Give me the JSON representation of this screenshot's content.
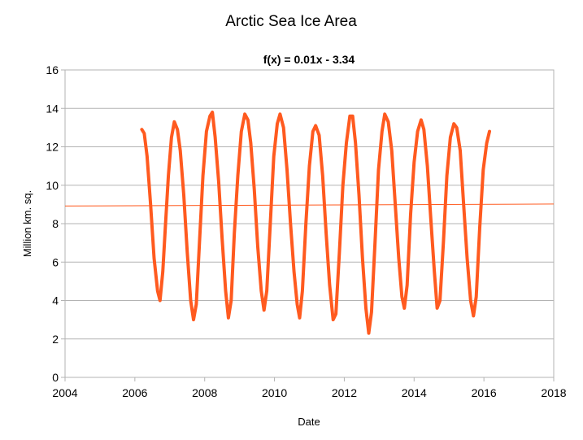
{
  "chart_data": {
    "type": "line",
    "title": "Arctic Sea Ice Area",
    "xlabel": "Date",
    "ylabel": "Million km. sq.",
    "xlim": [
      2004,
      2018
    ],
    "ylim": [
      0,
      16
    ],
    "x_ticks": [
      "2004",
      "2006",
      "2008",
      "2010",
      "2012",
      "2014",
      "2016",
      "2018"
    ],
    "y_ticks": [
      "0",
      "2",
      "4",
      "6",
      "8",
      "10",
      "12",
      "14",
      "16"
    ],
    "grid": true,
    "legend": "none",
    "series": [
      {
        "color": "#ff5a1f",
        "points": [
          [
            2006.2,
            12.9
          ],
          [
            2006.27,
            12.7
          ],
          [
            2006.35,
            11.5
          ],
          [
            2006.45,
            9.0
          ],
          [
            2006.55,
            6.2
          ],
          [
            2006.65,
            4.5
          ],
          [
            2006.72,
            4.0
          ],
          [
            2006.8,
            5.5
          ],
          [
            2006.88,
            8.0
          ],
          [
            2006.96,
            10.5
          ],
          [
            2007.05,
            12.5
          ],
          [
            2007.13,
            13.3
          ],
          [
            2007.22,
            12.9
          ],
          [
            2007.3,
            11.8
          ],
          [
            2007.4,
            9.5
          ],
          [
            2007.5,
            6.5
          ],
          [
            2007.6,
            4.0
          ],
          [
            2007.68,
            3.0
          ],
          [
            2007.76,
            3.8
          ],
          [
            2007.85,
            7.0
          ],
          [
            2007.95,
            10.5
          ],
          [
            2008.05,
            12.8
          ],
          [
            2008.15,
            13.6
          ],
          [
            2008.22,
            13.8
          ],
          [
            2008.3,
            12.5
          ],
          [
            2008.4,
            10.2
          ],
          [
            2008.5,
            7.2
          ],
          [
            2008.6,
            4.5
          ],
          [
            2008.68,
            3.1
          ],
          [
            2008.76,
            4.0
          ],
          [
            2008.85,
            7.5
          ],
          [
            2008.95,
            10.5
          ],
          [
            2009.05,
            12.8
          ],
          [
            2009.15,
            13.7
          ],
          [
            2009.24,
            13.4
          ],
          [
            2009.32,
            12.2
          ],
          [
            2009.42,
            9.8
          ],
          [
            2009.52,
            6.8
          ],
          [
            2009.62,
            4.5
          ],
          [
            2009.7,
            3.5
          ],
          [
            2009.78,
            4.5
          ],
          [
            2009.88,
            8.0
          ],
          [
            2009.98,
            11.5
          ],
          [
            2010.08,
            13.2
          ],
          [
            2010.16,
            13.7
          ],
          [
            2010.26,
            13.0
          ],
          [
            2010.36,
            10.8
          ],
          [
            2010.46,
            8.0
          ],
          [
            2010.56,
            5.5
          ],
          [
            2010.65,
            3.8
          ],
          [
            2010.72,
            3.1
          ],
          [
            2010.8,
            4.5
          ],
          [
            2010.9,
            8.0
          ],
          [
            2011.0,
            11.0
          ],
          [
            2011.1,
            12.8
          ],
          [
            2011.18,
            13.1
          ],
          [
            2011.28,
            12.6
          ],
          [
            2011.38,
            10.5
          ],
          [
            2011.48,
            7.5
          ],
          [
            2011.58,
            4.8
          ],
          [
            2011.68,
            3.0
          ],
          [
            2011.76,
            3.3
          ],
          [
            2011.86,
            6.5
          ],
          [
            2011.96,
            10.0
          ],
          [
            2012.06,
            12.2
          ],
          [
            2012.16,
            13.6
          ],
          [
            2012.24,
            13.6
          ],
          [
            2012.32,
            12.2
          ],
          [
            2012.42,
            9.5
          ],
          [
            2012.52,
            6.2
          ],
          [
            2012.62,
            3.6
          ],
          [
            2012.7,
            2.3
          ],
          [
            2012.78,
            3.4
          ],
          [
            2012.88,
            7.0
          ],
          [
            2012.98,
            10.8
          ],
          [
            2013.08,
            12.8
          ],
          [
            2013.16,
            13.7
          ],
          [
            2013.26,
            13.3
          ],
          [
            2013.36,
            11.8
          ],
          [
            2013.46,
            9.0
          ],
          [
            2013.56,
            6.2
          ],
          [
            2013.65,
            4.2
          ],
          [
            2013.72,
            3.6
          ],
          [
            2013.8,
            4.8
          ],
          [
            2013.9,
            8.5
          ],
          [
            2014.0,
            11.2
          ],
          [
            2014.1,
            12.8
          ],
          [
            2014.2,
            13.4
          ],
          [
            2014.28,
            12.9
          ],
          [
            2014.38,
            11.0
          ],
          [
            2014.48,
            8.2
          ],
          [
            2014.58,
            5.5
          ],
          [
            2014.66,
            3.6
          ],
          [
            2014.74,
            4.0
          ],
          [
            2014.84,
            7.0
          ],
          [
            2014.94,
            10.5
          ],
          [
            2015.04,
            12.5
          ],
          [
            2015.14,
            13.2
          ],
          [
            2015.22,
            13.0
          ],
          [
            2015.32,
            11.8
          ],
          [
            2015.42,
            9.0
          ],
          [
            2015.52,
            6.2
          ],
          [
            2015.62,
            4.0
          ],
          [
            2015.7,
            3.2
          ],
          [
            2015.78,
            4.2
          ],
          [
            2015.88,
            7.8
          ],
          [
            2015.98,
            10.8
          ],
          [
            2016.08,
            12.2
          ],
          [
            2016.16,
            12.8
          ]
        ]
      }
    ],
    "trendline": {
      "label": "f(x) = 0.01x - 3.34",
      "color": "#ff5a1f",
      "points": [
        [
          2004,
          8.92
        ],
        [
          2018,
          9.02
        ]
      ]
    }
  }
}
